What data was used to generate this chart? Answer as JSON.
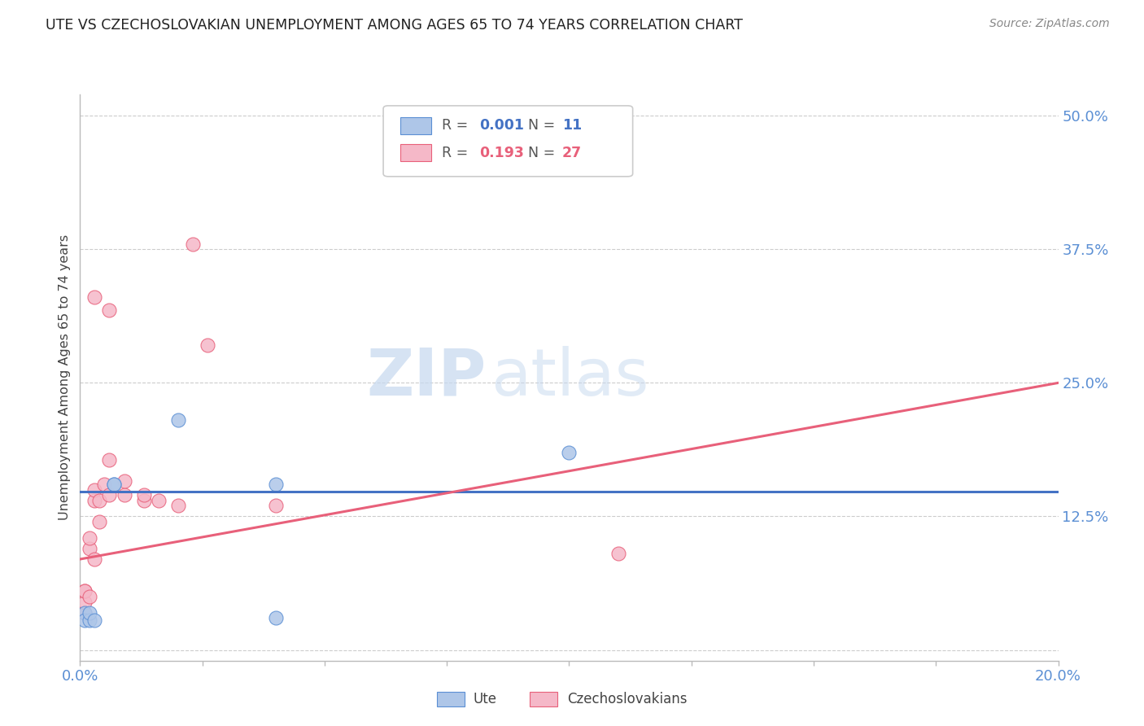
{
  "title": "UTE VS CZECHOSLOVAKIAN UNEMPLOYMENT AMONG AGES 65 TO 74 YEARS CORRELATION CHART",
  "source": "Source: ZipAtlas.com",
  "ylabel": "Unemployment Among Ages 65 to 74 years",
  "xlim": [
    0.0,
    0.2
  ],
  "ylim": [
    -0.01,
    0.52
  ],
  "xticks": [
    0.0,
    0.025,
    0.05,
    0.075,
    0.1,
    0.125,
    0.15,
    0.175,
    0.2
  ],
  "xticklabels": [
    "0.0%",
    "",
    "",
    "",
    "",
    "",
    "",
    "",
    "20.0%"
  ],
  "yticks": [
    0.0,
    0.125,
    0.25,
    0.375,
    0.5
  ],
  "yticklabels": [
    "",
    "12.5%",
    "25.0%",
    "37.5%",
    "50.0%"
  ],
  "ute_color": "#aec6e8",
  "czechoslovakian_color": "#f5b8c8",
  "ute_edge_color": "#5b8fd4",
  "czechoslovakian_edge_color": "#e8607a",
  "ute_line_color": "#4472c4",
  "czechoslovakian_line_color": "#e8607a",
  "tick_color": "#5b8fd4",
  "legend_R_ute": "0.001",
  "legend_N_ute": "11",
  "legend_R_czech": "0.193",
  "legend_N_czech": "27",
  "watermark_zip": "ZIP",
  "watermark_atlas": "atlas",
  "ute_scatter_x": [
    0.001,
    0.001,
    0.002,
    0.002,
    0.003,
    0.007,
    0.007,
    0.02,
    0.04,
    0.04,
    0.1
  ],
  "ute_scatter_y": [
    0.035,
    0.028,
    0.028,
    0.035,
    0.028,
    0.155,
    0.155,
    0.215,
    0.155,
    0.03,
    0.185
  ],
  "czechoslovakian_scatter_x": [
    0.001,
    0.001,
    0.001,
    0.001,
    0.002,
    0.002,
    0.002,
    0.003,
    0.003,
    0.003,
    0.003,
    0.004,
    0.004,
    0.005,
    0.006,
    0.006,
    0.006,
    0.009,
    0.009,
    0.013,
    0.013,
    0.016,
    0.02,
    0.023,
    0.026,
    0.04,
    0.11
  ],
  "czechoslovakian_scatter_y": [
    0.035,
    0.045,
    0.055,
    0.055,
    0.05,
    0.095,
    0.105,
    0.085,
    0.14,
    0.15,
    0.33,
    0.12,
    0.14,
    0.155,
    0.178,
    0.318,
    0.145,
    0.145,
    0.158,
    0.14,
    0.145,
    0.14,
    0.135,
    0.38,
    0.285,
    0.135,
    0.09
  ],
  "ute_trend_x": [
    0.0,
    0.2
  ],
  "ute_trend_y": [
    0.148,
    0.148
  ],
  "czech_trend_x": [
    0.0,
    0.2
  ],
  "czech_trend_y": [
    0.085,
    0.25
  ]
}
